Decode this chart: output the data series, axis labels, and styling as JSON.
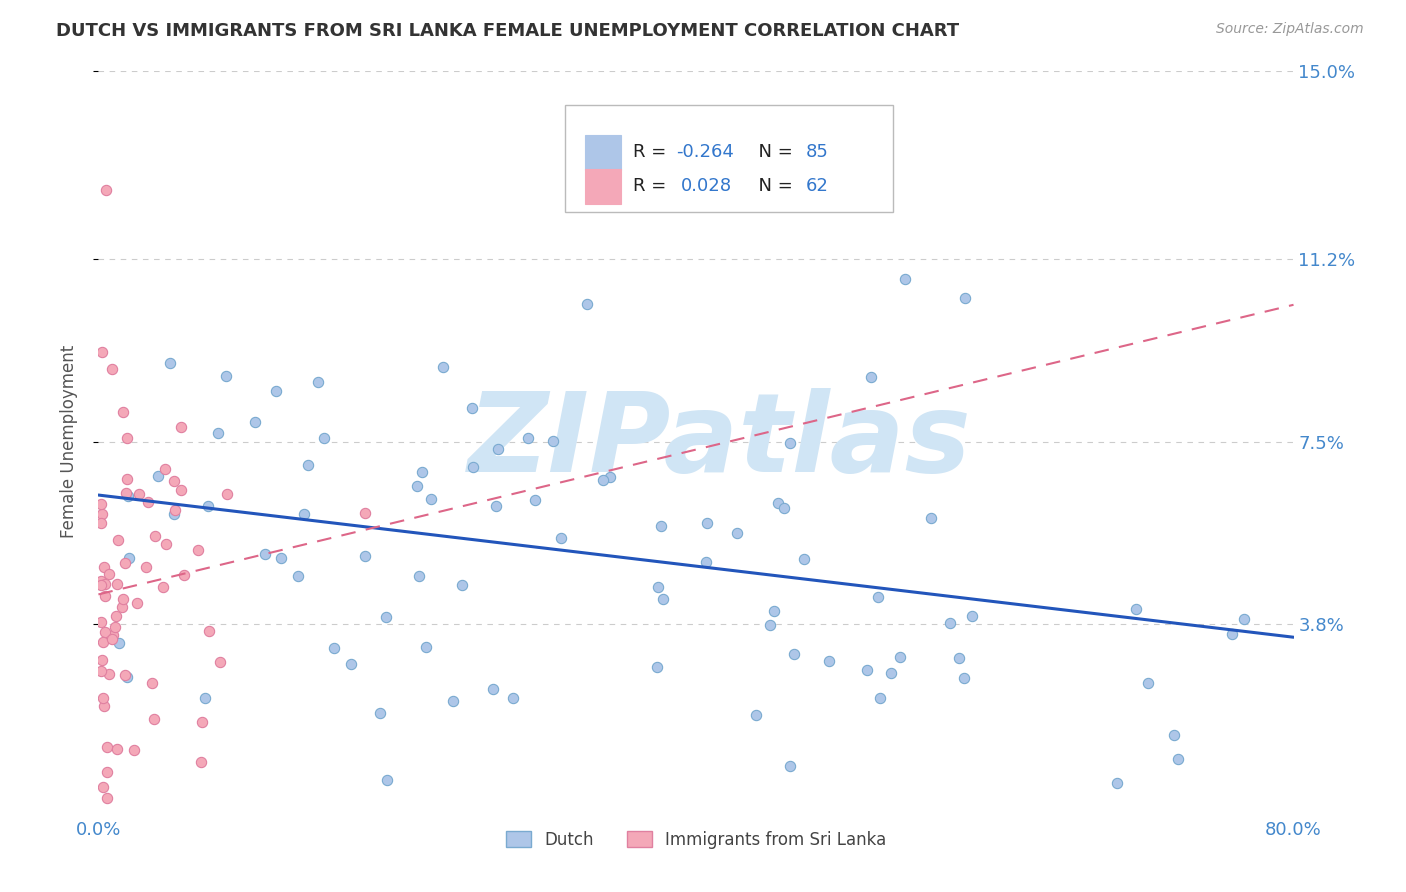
{
  "title": "DUTCH VS IMMIGRANTS FROM SRI LANKA FEMALE UNEMPLOYMENT CORRELATION CHART",
  "source": "Source: ZipAtlas.com",
  "ylabel": "Female Unemployment",
  "xlim": [
    0.0,
    0.8
  ],
  "ylim": [
    0.0,
    0.15
  ],
  "yticks": [
    0.038,
    0.075,
    0.112,
    0.15
  ],
  "ytick_labels": [
    "3.8%",
    "7.5%",
    "11.2%",
    "15.0%"
  ],
  "xtick_labels": [
    "0.0%",
    "80.0%"
  ],
  "xtick_positions": [
    0.0,
    0.8
  ],
  "dutch_color": "#aec6e8",
  "dutch_edge_color": "#7aaad0",
  "srilanka_color": "#f4a8b8",
  "srilanka_edge_color": "#e080a0",
  "dutch_label": "Dutch",
  "srilanka_label": "Immigrants from Sri Lanka",
  "dutch_R": "-0.264",
  "dutch_N": "85",
  "srilanka_R": "0.028",
  "srilanka_N": "62",
  "watermark": "ZIPatlas",
  "background_color": "#ffffff",
  "grid_color": "#cccccc",
  "axis_color": "#4488cc",
  "dutch_trend_color": "#2255bb",
  "srilanka_trend_color": "#dd6688",
  "legend_text_color": "#3377cc",
  "legend_r_color": "#222222",
  "title_color": "#333333",
  "source_color": "#999999",
  "ylabel_color": "#555555",
  "watermark_color": "#d0e5f5",
  "marker_size": 55
}
